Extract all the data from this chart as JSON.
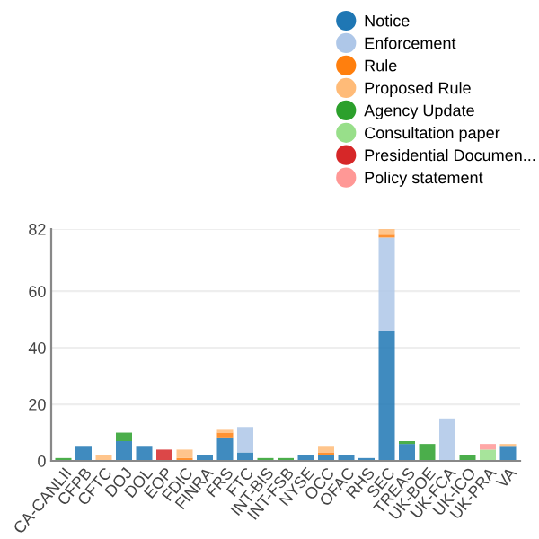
{
  "chart_data": {
    "type": "bar",
    "stacked": true,
    "categories": [
      "CA-CANLII",
      "CFPB",
      "CFTC",
      "DOJ",
      "DOL",
      "EOP",
      "FDIC",
      "FINRA",
      "FRS",
      "FTC",
      "INT-BIS",
      "INT-FSB",
      "NYSE",
      "OCC",
      "OFAC",
      "RHS",
      "SEC",
      "TREAS",
      "UK-BOE",
      "UK-FCA",
      "UK-ICO",
      "UK-PRA",
      "VA"
    ],
    "series": [
      {
        "name": "Notice",
        "color": "#1f77b4",
        "values": [
          0,
          5,
          0,
          7,
          5,
          0,
          0,
          2,
          8,
          3,
          0,
          0,
          2,
          2,
          2,
          1,
          46,
          6,
          0,
          0,
          0,
          0,
          5
        ]
      },
      {
        "name": "Enforcement",
        "color": "#aec7e8",
        "values": [
          0,
          0,
          0,
          0,
          0,
          0,
          0,
          0,
          0,
          9,
          0,
          0,
          0,
          0,
          0,
          0,
          33,
          0,
          0,
          15,
          0,
          0,
          0
        ]
      },
      {
        "name": "Rule",
        "color": "#ff7f0e",
        "values": [
          0,
          0,
          0,
          0,
          0,
          0,
          1,
          0,
          2,
          0,
          0,
          0,
          0,
          1,
          0,
          0,
          1,
          0,
          0,
          0,
          0,
          0,
          0
        ]
      },
      {
        "name": "Proposed Rule",
        "color": "#ffbb78",
        "values": [
          0,
          0,
          2,
          0,
          0,
          0,
          3,
          0,
          1,
          0,
          0,
          0,
          0,
          2,
          0,
          0,
          2,
          0,
          0,
          0,
          0,
          0,
          1
        ]
      },
      {
        "name": "Agency Update",
        "color": "#2ca02c",
        "values": [
          1,
          0,
          0,
          3,
          0,
          0,
          0,
          0,
          0,
          0,
          1,
          1,
          0,
          0,
          0,
          0,
          0,
          1,
          6,
          0,
          2,
          0,
          0
        ]
      },
      {
        "name": "Consultation paper",
        "color": "#98df8a",
        "values": [
          0,
          0,
          0,
          0,
          0,
          0,
          0,
          0,
          0,
          0,
          0,
          0,
          0,
          0,
          0,
          0,
          0,
          0,
          0,
          0,
          0,
          4,
          0
        ]
      },
      {
        "name": "Presidential Documen...",
        "color": "#d62728",
        "values": [
          0,
          0,
          0,
          0,
          0,
          4,
          0,
          0,
          0,
          0,
          0,
          0,
          0,
          0,
          0,
          0,
          0,
          0,
          0,
          0,
          0,
          0,
          0
        ]
      },
      {
        "name": "Policy statement",
        "color": "#ff9896",
        "values": [
          0,
          0,
          0,
          0,
          0,
          0,
          0,
          0,
          0,
          0,
          0,
          0,
          0,
          0,
          0,
          0,
          0,
          0,
          0,
          0,
          0,
          2,
          0
        ]
      }
    ],
    "ylim": [
      0,
      82
    ],
    "yticks": [
      0,
      20,
      40,
      60,
      82
    ],
    "grid": "y",
    "legend": "top right"
  }
}
